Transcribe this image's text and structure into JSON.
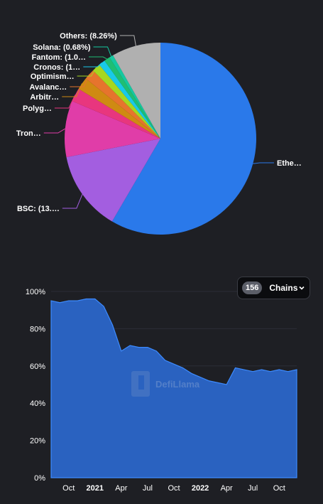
{
  "chart_data": [
    {
      "type": "pie",
      "slices": [
        {
          "label": "Ethe…",
          "value": 58.5,
          "color": "#2a79ea"
        },
        {
          "label": "BSC: (13.…",
          "value": 13.5,
          "color": "#a35ee0"
        },
        {
          "label": "Tron…",
          "value": 9.5,
          "color": "#e03da8"
        },
        {
          "label": "Polyg…",
          "value": 2.3,
          "color": "#e8367e"
        },
        {
          "label": "Arbitr…",
          "value": 2.1,
          "color": "#cf8a12"
        },
        {
          "label": "Avalanc…",
          "value": 1.8,
          "color": "#e6742d"
        },
        {
          "label": "Optimism…",
          "value": 1.4,
          "color": "#a6d71f"
        },
        {
          "label": "Cronos: (1…",
          "value": 1.1,
          "color": "#19c9e8"
        },
        {
          "label": "Fantom: (1.0…",
          "value": 1.0,
          "color": "#1fbe73"
        },
        {
          "label": "Solana: (0.68%)",
          "value": 0.68,
          "color": "#14c8a0"
        },
        {
          "label": "Others: (8.26%)",
          "value": 8.26,
          "color": "#b0b0b0"
        }
      ]
    },
    {
      "type": "area",
      "x_ticks": [
        "Oct",
        "2021",
        "Apr",
        "Jul",
        "Oct",
        "2022",
        "Apr",
        "Jul",
        "Oct"
      ],
      "bold_ticks": [
        "2021",
        "2022"
      ],
      "y_ticks": [
        "100%",
        "80%",
        "60%",
        "40%",
        "20%",
        "0%"
      ],
      "ylim": [
        0,
        100
      ],
      "x_range": [
        "2020-08",
        "2022-12"
      ],
      "series": [
        {
          "name": "Ethereum",
          "color": "#2a62c0",
          "x": [
            "2020-08",
            "2020-09",
            "2020-10",
            "2020-11",
            "2020-12",
            "2021-01",
            "2021-02",
            "2021-03",
            "2021-04",
            "2021-05",
            "2021-06",
            "2021-07",
            "2021-08",
            "2021-09",
            "2021-10",
            "2021-11",
            "2021-12",
            "2022-01",
            "2022-02",
            "2022-03",
            "2022-04",
            "2022-05",
            "2022-06",
            "2022-07",
            "2022-08",
            "2022-09",
            "2022-10",
            "2022-11",
            "2022-12"
          ],
          "values": [
            95,
            94,
            95,
            95,
            96,
            96,
            92,
            82,
            68,
            71,
            70,
            70,
            68,
            63,
            61,
            59,
            56,
            54,
            52,
            51,
            50,
            59,
            58,
            57,
            58,
            57,
            58,
            57,
            58
          ]
        }
      ]
    }
  ],
  "chains_selector": {
    "count": "156",
    "label": "Chains"
  },
  "watermark": "DefiLlama"
}
